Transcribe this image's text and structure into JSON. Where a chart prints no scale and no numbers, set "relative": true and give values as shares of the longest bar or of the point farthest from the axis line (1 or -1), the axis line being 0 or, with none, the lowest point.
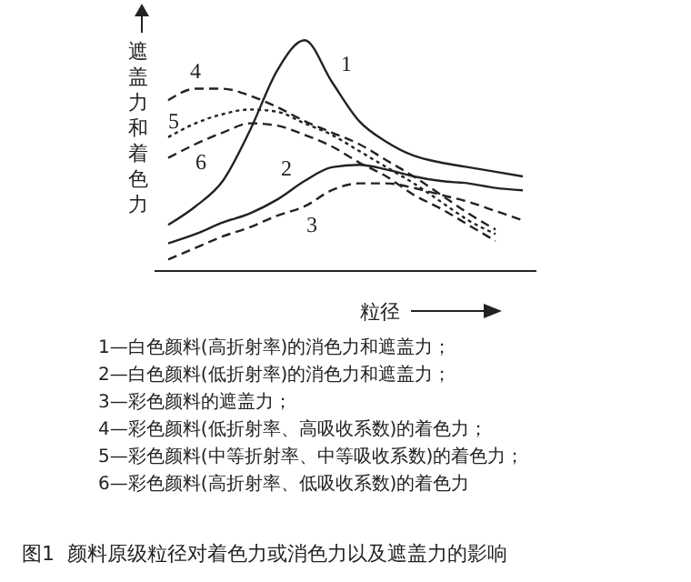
{
  "chart_data": {
    "type": "line",
    "relative": true,
    "xlabel": "粒径",
    "ylabel": "遮盖力和着色力",
    "categories": [
      null,
      null,
      null,
      null,
      null,
      null,
      null,
      null,
      null,
      null,
      null,
      null,
      null,
      null
    ],
    "series": [
      {
        "name": "1",
        "color": "#222222",
        "line_style": "solid",
        "values": [
          0.2,
          0.28,
          0.39,
          0.61,
          0.87,
          1.0,
          0.82,
          0.65,
          0.56,
          0.5,
          0.47,
          0.45,
          0.43,
          0.41
        ]
      },
      {
        "name": "2",
        "color": "#222222",
        "line_style": "solid",
        "values": [
          0.12,
          0.16,
          0.21,
          0.25,
          0.31,
          0.39,
          0.45,
          0.46,
          0.44,
          0.41,
          0.39,
          0.38,
          0.36,
          0.35
        ]
      },
      {
        "name": "3",
        "color": "#222222",
        "line_style": "dashed",
        "values": [
          0.05,
          0.1,
          0.15,
          0.19,
          0.24,
          0.28,
          0.35,
          0.38,
          0.38,
          0.36,
          0.33,
          0.3,
          0.26,
          0.22
        ]
      },
      {
        "name": "4",
        "color": "#222222",
        "line_style": "dashed",
        "values": [
          0.74,
          0.79,
          0.79,
          0.76,
          0.71,
          0.65,
          0.6,
          0.55,
          0.48,
          0.41,
          0.33,
          0.25,
          0.18,
          null
        ]
      },
      {
        "name": "5",
        "color": "#222222",
        "line_style": "dotted",
        "values": [
          0.58,
          0.64,
          0.68,
          0.7,
          0.69,
          0.64,
          0.59,
          0.52,
          0.45,
          0.38,
          0.3,
          0.22,
          0.16,
          null
        ]
      },
      {
        "name": "6",
        "color": "#222222",
        "line_style": "dashed",
        "values": [
          0.49,
          0.55,
          0.6,
          0.64,
          0.63,
          0.59,
          0.54,
          0.47,
          0.41,
          0.33,
          0.27,
          0.2,
          0.13,
          null
        ]
      }
    ],
    "marker": "none",
    "grid": false,
    "legend": false,
    "annotations": [
      "1—白色颜料(高折射率)的消色力和遮盖力；",
      "2—白色颜料(低折射率)的消色力和遮盖力；",
      "3—彩色颜料的遮盖力；",
      "4—彩色颜料(低折射率、高吸收系数)的着色力；",
      "5—彩色颜料(中等折射率、中等吸收系数)的着色力；",
      "6—彩色颜料(高折射率、低吸收系数)的着色力",
      "图1  颜料原级粒径对着色力或消色力以及遮盖力的影响"
    ]
  }
}
